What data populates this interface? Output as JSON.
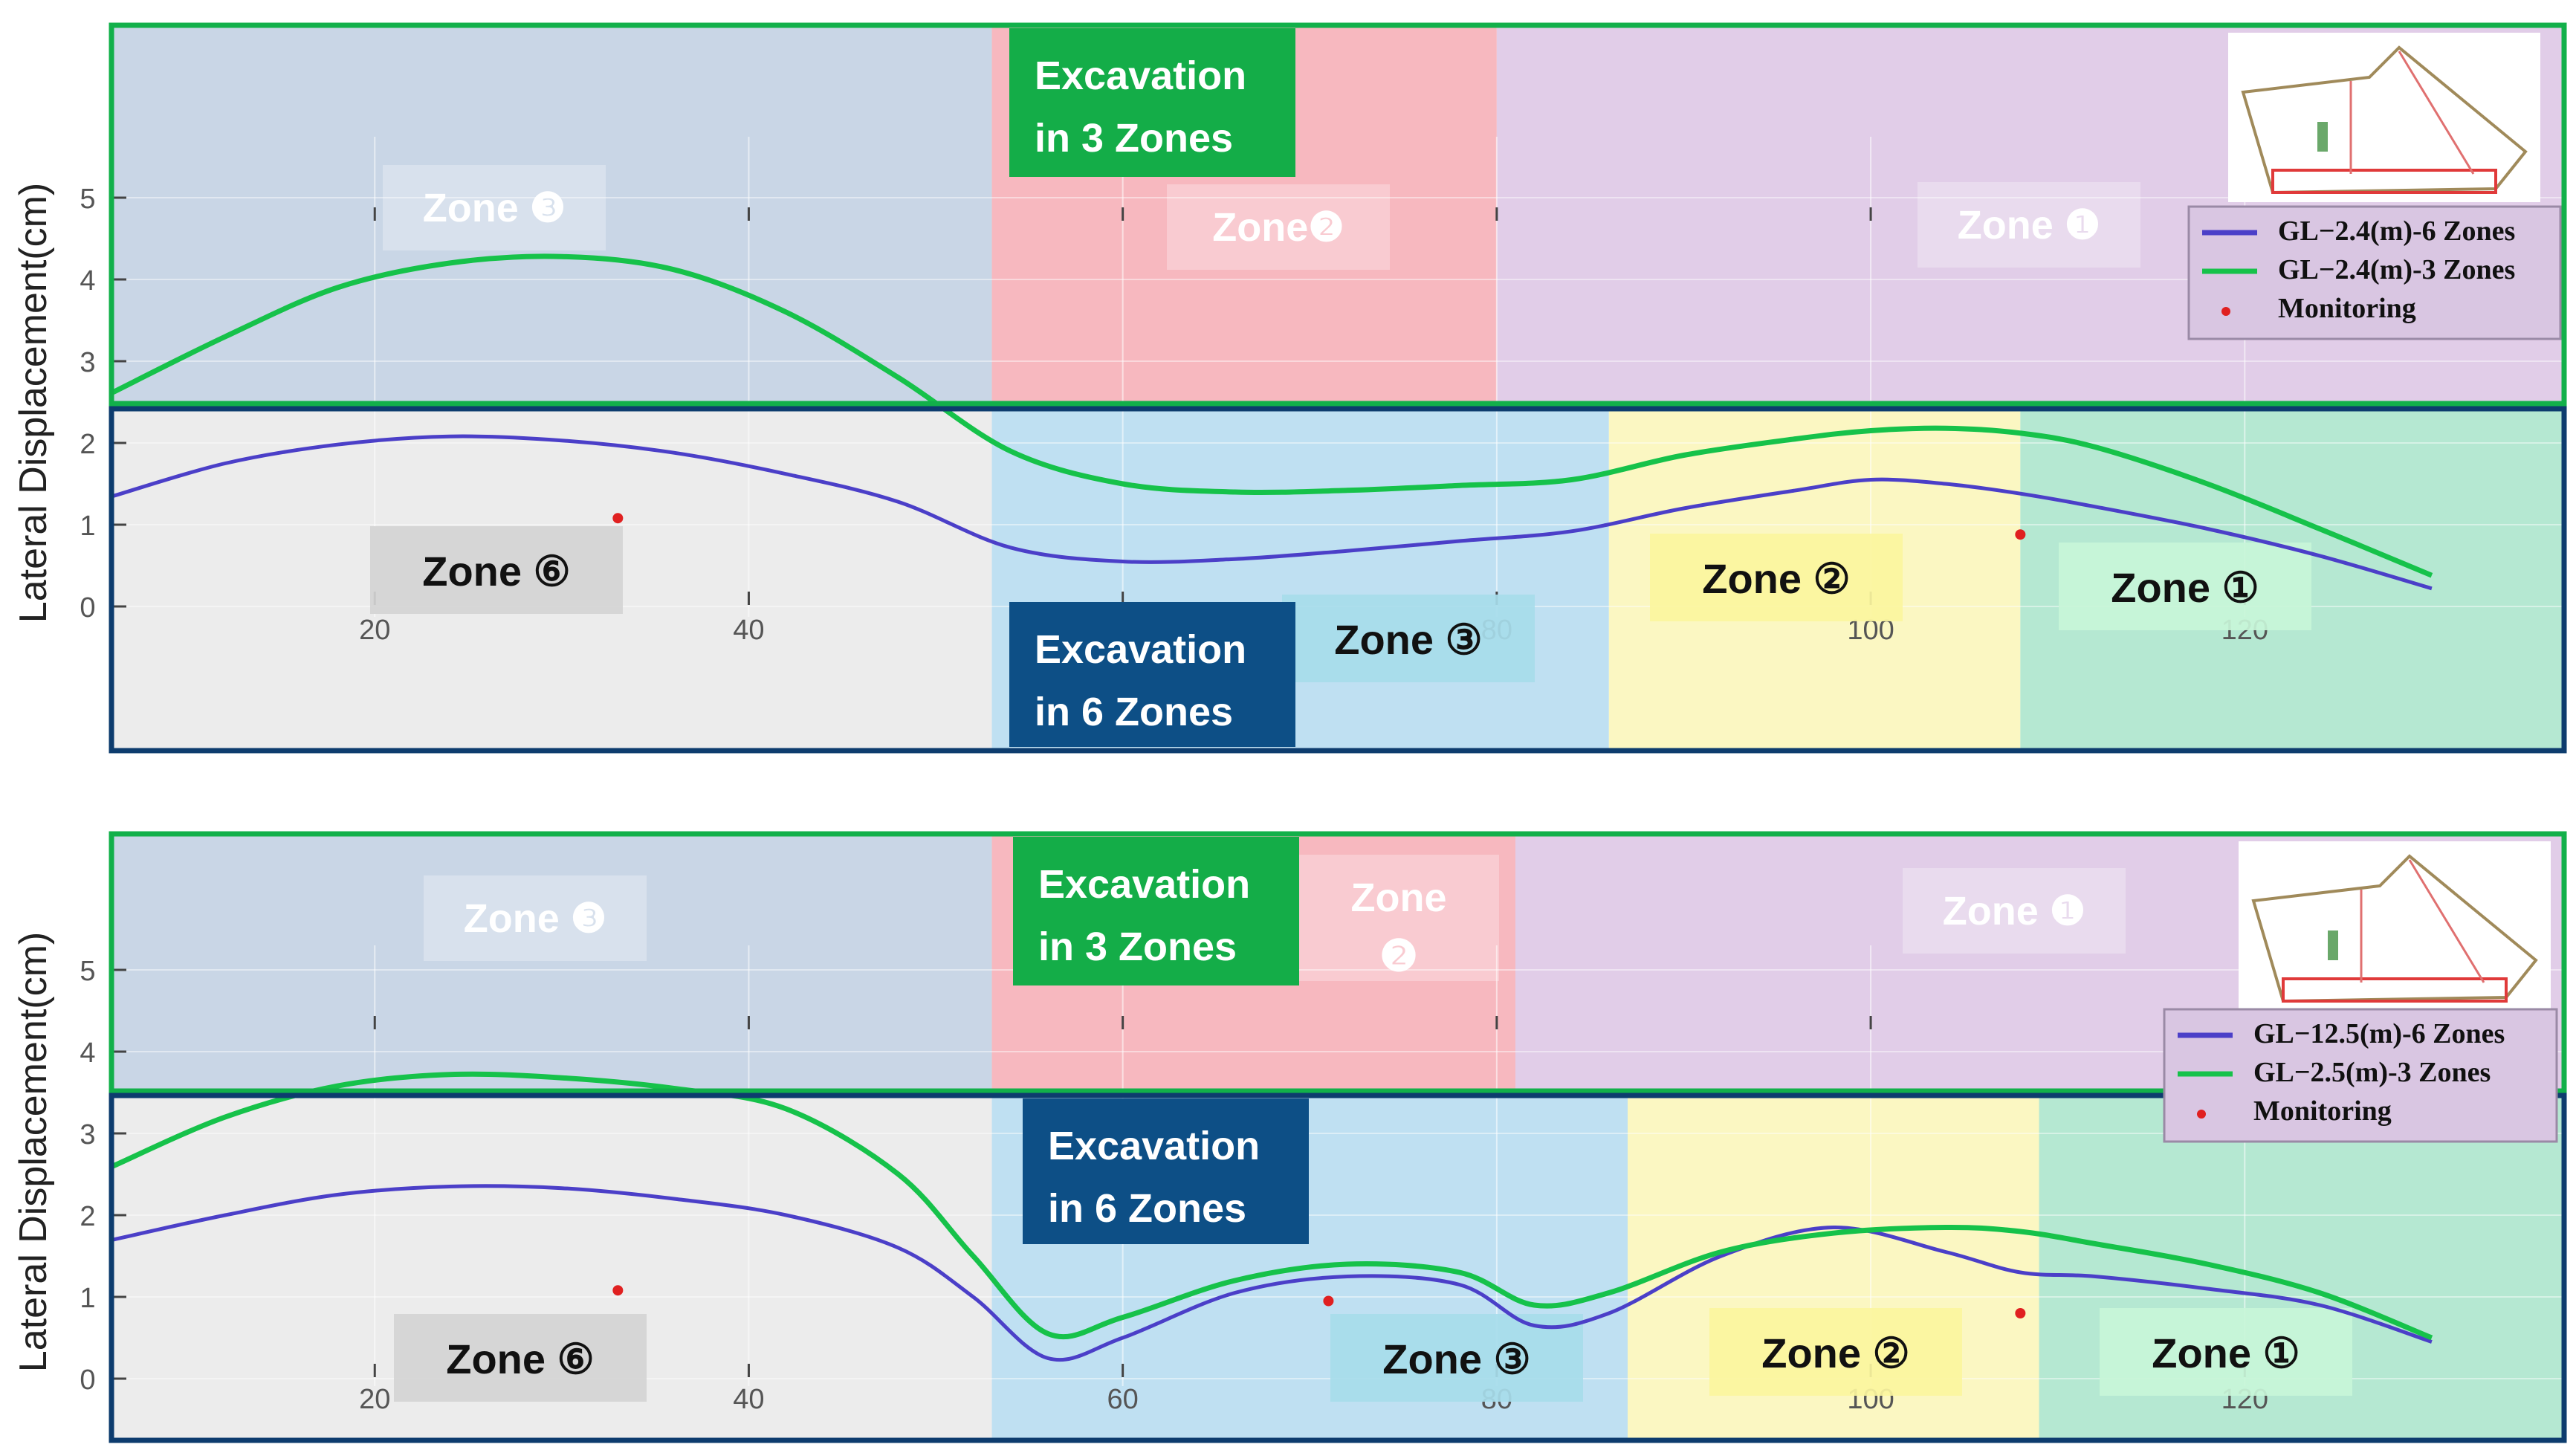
{
  "chart_data": [
    {
      "type": "line",
      "ylabel": "Lateral Displacement(cm)",
      "xticks": [
        20,
        40,
        60,
        80,
        100,
        120
      ],
      "xtick_labels_visible": [
        "20",
        "40",
        "80",
        "100",
        "120"
      ],
      "yticks": [
        0,
        1,
        2,
        3,
        4,
        5
      ],
      "xlim": [
        6,
        137
      ],
      "ylim": [
        0,
        5.7
      ],
      "legend_position": "top-right",
      "series": [
        {
          "name": "GL−2.4(m)-6 Zones",
          "color": "#4b3fc8",
          "x": [
            6,
            12,
            18,
            24,
            30,
            36,
            42,
            48,
            54,
            60,
            66,
            72,
            78,
            84,
            90,
            96,
            100,
            104,
            108,
            112,
            118,
            124,
            130
          ],
          "y": [
            1.35,
            1.75,
            1.98,
            2.08,
            2.03,
            1.88,
            1.62,
            1.28,
            0.72,
            0.55,
            0.58,
            0.68,
            0.8,
            0.92,
            1.2,
            1.42,
            1.55,
            1.5,
            1.38,
            1.22,
            0.95,
            0.62,
            0.22
          ]
        },
        {
          "name": "GL−2.4(m)-3 Zones",
          "color": "#16c24a",
          "x": [
            6,
            12,
            18,
            24,
            30,
            36,
            42,
            48,
            54,
            60,
            66,
            72,
            78,
            84,
            90,
            96,
            100,
            104,
            108,
            112,
            118,
            124,
            130
          ],
          "y": [
            2.62,
            3.3,
            3.9,
            4.2,
            4.28,
            4.12,
            3.6,
            2.8,
            1.9,
            1.5,
            1.4,
            1.42,
            1.48,
            1.55,
            1.85,
            2.05,
            2.15,
            2.18,
            2.12,
            1.95,
            1.5,
            0.95,
            0.38
          ]
        },
        {
          "name": "Monitoring",
          "color": "#e02020",
          "marker": "dot",
          "x": [
            33,
            108
          ],
          "y": [
            1.08,
            0.88
          ]
        }
      ],
      "zones_3": [
        {
          "label": "Zone ❸",
          "from": 6,
          "to": 53,
          "color": "#c9d6e6"
        },
        {
          "label": "Zone❷",
          "from": 53,
          "to": 80,
          "color": "#f7b8bf"
        },
        {
          "label": "Zone ❶",
          "from": 80,
          "to": 137,
          "color": "#e1cde8"
        }
      ],
      "zones_6": [
        {
          "label": "Zone ⑥",
          "from": 6,
          "to": 53,
          "color": "#ececec"
        },
        {
          "label": "Zone ③",
          "from": 53,
          "to": 86,
          "color": "#bfe0f2"
        },
        {
          "label": "Zone ②",
          "from": 86,
          "to": 108,
          "color": "#fbf7c2"
        },
        {
          "label": "Zone ①",
          "from": 108,
          "to": 137,
          "color": "#b5e8d2"
        }
      ],
      "tag_3": "Excavation in 3 Zones",
      "tag_6": "Excavation in 6 Zones"
    },
    {
      "type": "line",
      "ylabel": "Lateral Displacement(cm)",
      "xticks": [
        20,
        40,
        60,
        80,
        100,
        120
      ],
      "xtick_labels_visible": [
        "20",
        "40",
        "60",
        "80",
        "100",
        "120"
      ],
      "yticks": [
        0,
        1,
        2,
        3,
        4,
        5
      ],
      "xlim": [
        6,
        137
      ],
      "ylim": [
        0,
        6.3
      ],
      "legend_position": "top-right",
      "series": [
        {
          "name": "GL−12.5(m)-6 Zones",
          "color": "#4b3fc8",
          "x": [
            6,
            12,
            18,
            24,
            30,
            36,
            42,
            48,
            52,
            56,
            60,
            66,
            72,
            78,
            82,
            86,
            92,
            98,
            104,
            108,
            112,
            118,
            124,
            130
          ],
          "y": [
            1.7,
            2.0,
            2.25,
            2.35,
            2.33,
            2.2,
            2.0,
            1.6,
            1.0,
            0.25,
            0.5,
            1.05,
            1.25,
            1.15,
            0.65,
            0.8,
            1.5,
            1.85,
            1.55,
            1.3,
            1.25,
            1.1,
            0.9,
            0.45
          ]
        },
        {
          "name": "GL−2.5(m)-3 Zones",
          "color": "#16c24a",
          "x": [
            6,
            12,
            18,
            24,
            30,
            36,
            42,
            48,
            52,
            56,
            60,
            66,
            72,
            78,
            82,
            86,
            92,
            98,
            104,
            108,
            112,
            118,
            124,
            130
          ],
          "y": [
            2.6,
            3.2,
            3.58,
            3.72,
            3.68,
            3.55,
            3.3,
            2.5,
            1.5,
            0.55,
            0.75,
            1.2,
            1.4,
            1.3,
            0.9,
            1.05,
            1.55,
            1.78,
            1.85,
            1.8,
            1.65,
            1.4,
            1.05,
            0.5
          ]
        },
        {
          "name": "Monitoring",
          "color": "#e02020",
          "marker": "dot",
          "x": [
            33,
            71,
            108
          ],
          "y": [
            1.08,
            0.95,
            0.8
          ]
        }
      ],
      "zones_3": [
        {
          "label": "Zone ❸",
          "from": 6,
          "to": 53,
          "color": "#c9d6e6"
        },
        {
          "label": "Zone",
          "label2": "❷",
          "from": 53,
          "to": 81,
          "color": "#f7b8bf"
        },
        {
          "label": "Zone ❶",
          "from": 81,
          "to": 137,
          "color": "#e1cde8"
        }
      ],
      "zones_6": [
        {
          "label": "Zone ⑥",
          "from": 6,
          "to": 53,
          "color": "#ececec"
        },
        {
          "label": "Zone ③",
          "from": 53,
          "to": 87,
          "color": "#bfe0f2"
        },
        {
          "label": "Zone ②",
          "from": 87,
          "to": 109,
          "color": "#fbf7c2"
        },
        {
          "label": "Zone ①",
          "from": 109,
          "to": 137,
          "color": "#b5e8d2"
        }
      ],
      "tag_3": "Excavation in 3 Zones",
      "tag_6": "Excavation in 6 Zones"
    }
  ],
  "colors": {
    "frame_3_zones": "#12b04a",
    "frame_6_zones": "#0d3c6e",
    "tag_3_bg": "#14ad48",
    "tag_6_bg": "#0d4f86"
  },
  "icons": [
    "site-plan-inset-icon",
    "legend-line-icon",
    "legend-dot-icon"
  ]
}
